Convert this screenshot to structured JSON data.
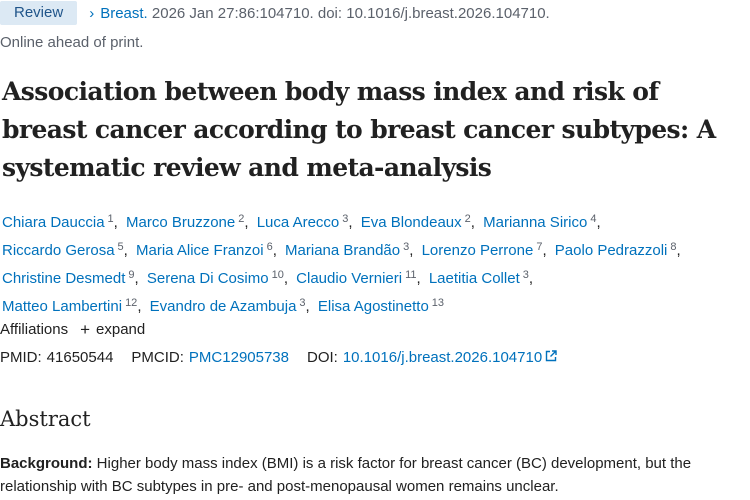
{
  "citation": {
    "badge": "Review",
    "journal": "Breast.",
    "details": "2026 Jan 27:86:104710. doi: 10.1016/j.breast.2026.104710.",
    "status": "Online ahead of print."
  },
  "title": "Association between body mass index and risk of breast cancer according to breast cancer subtypes: A systematic review and meta-analysis",
  "authors": [
    {
      "name": "Chiara Dauccia",
      "aff": "1"
    },
    {
      "name": "Marco Bruzzone",
      "aff": "2"
    },
    {
      "name": "Luca Arecco",
      "aff": "3"
    },
    {
      "name": "Eva Blondeaux",
      "aff": "2"
    },
    {
      "name": "Marianna Sirico",
      "aff": "4"
    },
    {
      "name": "Riccardo Gerosa",
      "aff": "5"
    },
    {
      "name": "Maria Alice Franzoi",
      "aff": "6"
    },
    {
      "name": "Mariana Brandão",
      "aff": "3"
    },
    {
      "name": "Lorenzo Perrone",
      "aff": "7"
    },
    {
      "name": "Paolo Pedrazzoli",
      "aff": "8"
    },
    {
      "name": "Christine Desmedt",
      "aff": "9"
    },
    {
      "name": "Serena Di Cosimo",
      "aff": "10"
    },
    {
      "name": "Claudio Vernieri",
      "aff": "11"
    },
    {
      "name": "Laetitia Collet",
      "aff": "3"
    },
    {
      "name": "Matteo Lambertini",
      "aff": "12"
    },
    {
      "name": "Evandro de Azambuja",
      "aff": "3"
    },
    {
      "name": "Elisa Agostinetto",
      "aff": "13"
    }
  ],
  "affiliations": {
    "label": "Affiliations",
    "expand": "expand"
  },
  "ids": {
    "pmid_label": "PMID:",
    "pmid": "41650544",
    "pmcid_label": "PMCID:",
    "pmcid": "PMC12905738",
    "doi_label": "DOI:",
    "doi": "10.1016/j.breast.2026.104710"
  },
  "abstract": {
    "heading": "Abstract",
    "background_label": "Background:",
    "background_text": " Higher body mass index (BMI) is a risk factor for breast cancer (BC) development, but the relationship with BC subtypes in pre- and post-menopausal women remains unclear."
  }
}
